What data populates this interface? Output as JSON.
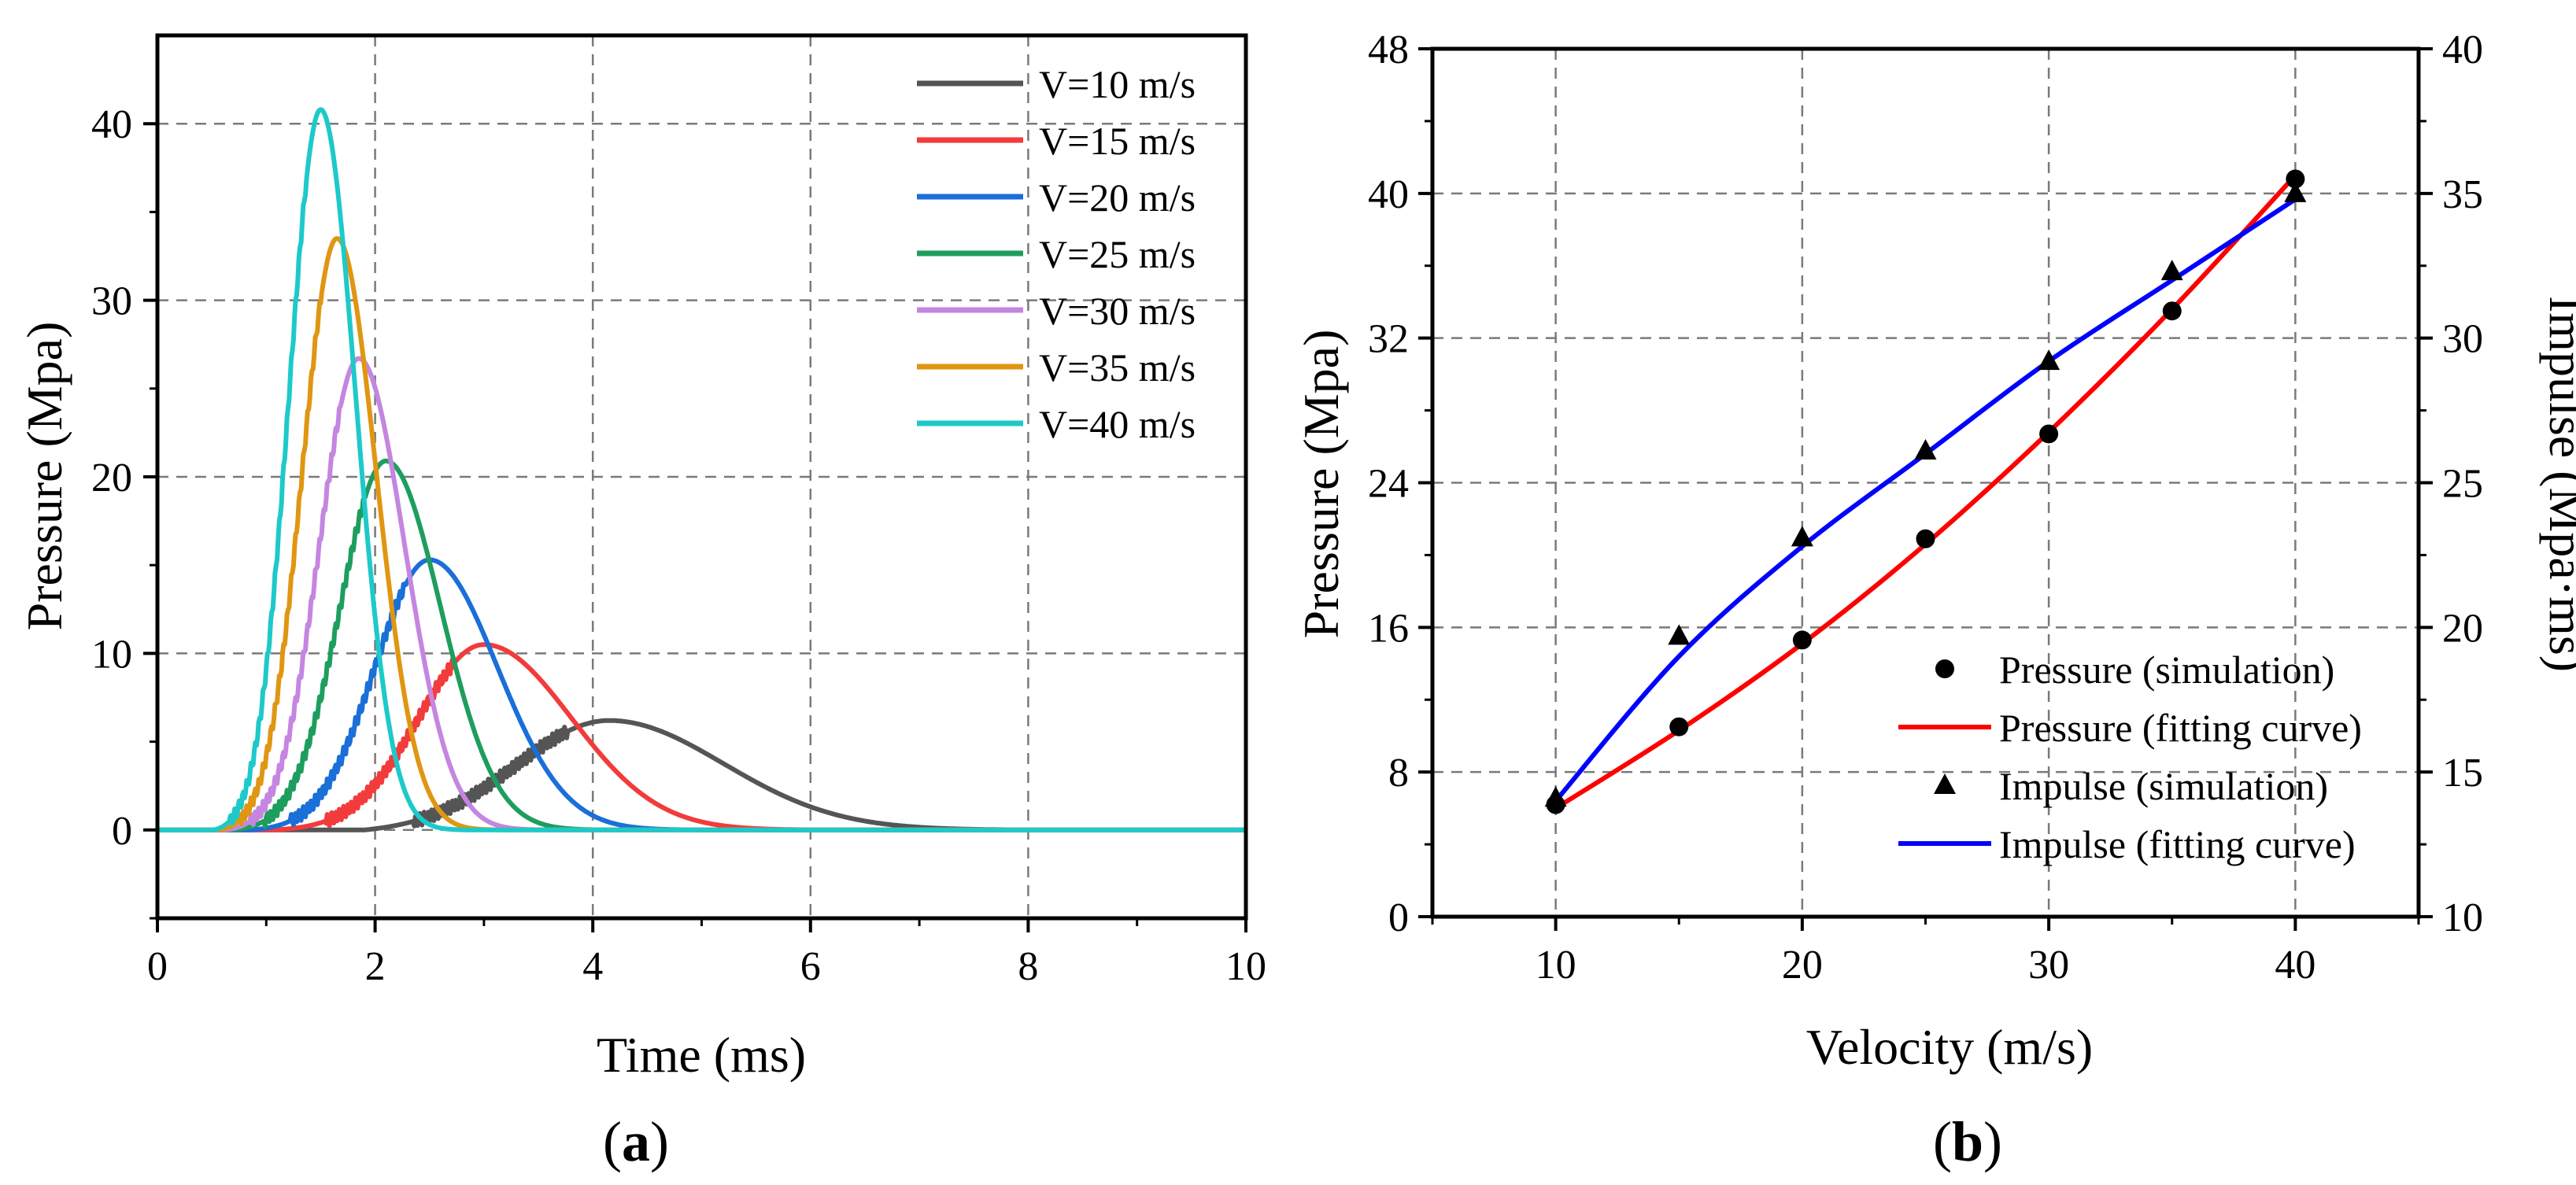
{
  "chart_data": [
    {
      "type": "line",
      "panel_label_open": "(",
      "panel_label": "a",
      "panel_label_close": ")",
      "xlabel": "Time (ms)",
      "ylabel": "Pressure (Mpa)",
      "xlim": [
        0,
        10
      ],
      "ylim": [
        -5,
        45
      ],
      "xticks": [
        0,
        2,
        4,
        6,
        8,
        10
      ],
      "yticks": [
        0,
        10,
        20,
        30,
        40
      ],
      "grid": true,
      "legend_position": "top-right",
      "series": [
        {
          "name": "V=10 m/s",
          "color": "#555555",
          "peak_time": 4.15,
          "peak": 6.2,
          "onset": 1.9,
          "rise_sigma": 0.85,
          "decay_sigma": 1.05
        },
        {
          "name": "V=15 m/s",
          "color": "#f23b3b",
          "peak_time": 3.0,
          "peak": 10.5,
          "onset": 1.05,
          "rise_sigma": 0.6,
          "decay_sigma": 0.8
        },
        {
          "name": "V=20 m/s",
          "color": "#1a6fd8",
          "peak_time": 2.5,
          "peak": 15.3,
          "onset": 0.85,
          "rise_sigma": 0.5,
          "decay_sigma": 0.62
        },
        {
          "name": "V=25 m/s",
          "color": "#1e9e5e",
          "peak_time": 2.1,
          "peak": 20.9,
          "onset": 0.7,
          "rise_sigma": 0.42,
          "decay_sigma": 0.5
        },
        {
          "name": "V=30 m/s",
          "color": "#c486e0",
          "peak_time": 1.85,
          "peak": 26.7,
          "onset": 0.62,
          "rise_sigma": 0.36,
          "decay_sigma": 0.42
        },
        {
          "name": "V=35 m/s",
          "color": "#e09612",
          "peak_time": 1.65,
          "peak": 33.5,
          "onset": 0.57,
          "rise_sigma": 0.32,
          "decay_sigma": 0.36
        },
        {
          "name": "V=40 m/s",
          "color": "#1ec9c9",
          "peak_time": 1.5,
          "peak": 40.8,
          "onset": 0.52,
          "rise_sigma": 0.29,
          "decay_sigma": 0.32
        }
      ]
    },
    {
      "type": "scatter+line",
      "panel_label_open": "(",
      "panel_label": "b",
      "panel_label_close": ")",
      "xlabel": "Velocity (m/s)",
      "ylabel": "Pressure (Mpa)",
      "y2label": "Impulse (Mpa·ms)",
      "xlim": [
        5,
        45
      ],
      "ylim": [
        0,
        48
      ],
      "y2lim": [
        10,
        40
      ],
      "xticks": [
        10,
        20,
        30,
        40
      ],
      "yticks": [
        0,
        8,
        16,
        24,
        32,
        40,
        48
      ],
      "y2ticks": [
        10,
        15,
        20,
        25,
        30,
        35,
        40
      ],
      "grid": true,
      "legend_position": "bottom-right",
      "x": [
        10,
        15,
        20,
        25,
        30,
        35,
        40
      ],
      "series": [
        {
          "name": "Pressure (simulation)",
          "kind": "scatter",
          "marker": "circle",
          "axis": "left",
          "color": "#000000",
          "values": [
            6.2,
            10.5,
            15.3,
            20.9,
            26.7,
            33.5,
            40.8
          ]
        },
        {
          "name": "Pressure (fitting curve)",
          "kind": "line",
          "axis": "left",
          "color": "#ff0000",
          "values": [
            6.0,
            10.3,
            15.1,
            20.6,
            26.8,
            33.6,
            41.0
          ]
        },
        {
          "name": "Impulse (simulation)",
          "kind": "scatter",
          "marker": "triangle",
          "axis": "right",
          "color": "#000000",
          "values": [
            14.1,
            19.7,
            23.1,
            26.1,
            29.2,
            32.3,
            35.0
          ]
        },
        {
          "name": "Impulse (fitting curve)",
          "kind": "line",
          "axis": "right",
          "color": "#0000ff",
          "values": [
            14.0,
            19.0,
            22.8,
            26.0,
            29.2,
            32.0,
            34.8
          ]
        }
      ]
    }
  ]
}
